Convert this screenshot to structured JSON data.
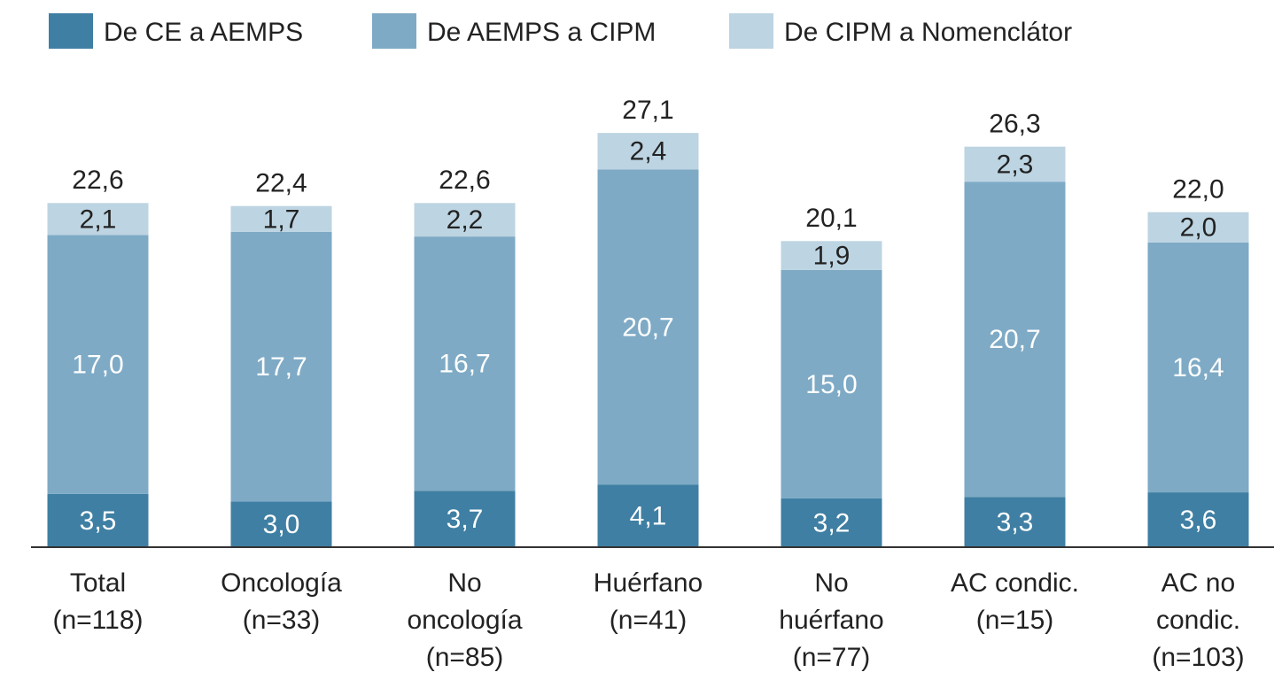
{
  "chart_data": {
    "type": "stacked_bar",
    "categories": [
      [
        "Total",
        "(n=118)"
      ],
      [
        "Oncología",
        "(n=33)"
      ],
      [
        "No",
        "oncología",
        "(n=85)"
      ],
      [
        "Huérfano",
        "(n=41)"
      ],
      [
        "No",
        "huérfano",
        "(n=77)"
      ],
      [
        "AC condic.",
        "(n=15)"
      ],
      [
        "AC no",
        "condic.",
        "(n=103)"
      ]
    ],
    "series": [
      {
        "name": "De CE a AEMPS",
        "color": "#3f7fa3",
        "values": [
          3.5,
          3.0,
          3.7,
          4.1,
          3.2,
          3.3,
          3.6
        ],
        "value_labels": [
          "3,5",
          "3,0",
          "3,7",
          "4,1",
          "3,2",
          "3,3",
          "3,6"
        ]
      },
      {
        "name": "De AEMPS a CIPM",
        "color": "#7eaac5",
        "values": [
          17.0,
          17.7,
          16.7,
          20.7,
          15.0,
          20.7,
          16.4
        ],
        "value_labels": [
          "17,0",
          "17,7",
          "16,7",
          "20,7",
          "15,0",
          "20,7",
          "16,4"
        ]
      },
      {
        "name": "De CIPM a Nomenclátor",
        "color": "#bdd4e2",
        "values": [
          2.1,
          1.7,
          2.2,
          2.4,
          1.9,
          2.3,
          2.0
        ],
        "value_labels": [
          "2,1",
          "1,7",
          "2,2",
          "2,4",
          "1,9",
          "2,3",
          "2,0"
        ]
      }
    ],
    "totals": [
      22.6,
      22.4,
      22.6,
      27.1,
      20.1,
      26.3,
      22.0
    ],
    "total_labels": [
      "22,6",
      "22,4",
      "22,6",
      "27,1",
      "20,1",
      "26,3",
      "22,0"
    ],
    "ylim": [
      0,
      30
    ],
    "legend": "top"
  }
}
